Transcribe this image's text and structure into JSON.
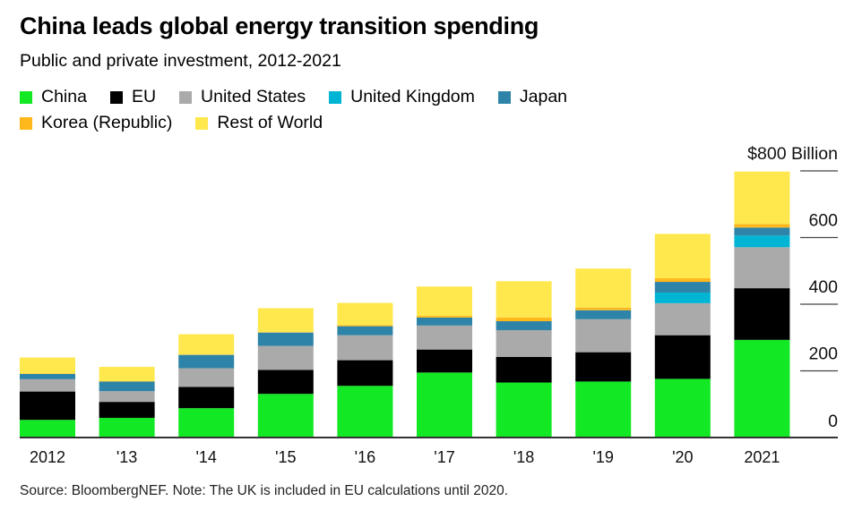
{
  "chart_data": {
    "type": "bar",
    "stacked": true,
    "title": "China leads global energy transition spending",
    "subtitle": "Public and private investment, 2012-2021",
    "source": "Source: BloombergNEF. Note: The UK is included in EU calculations until 2020.",
    "categories": [
      "2012",
      "'13",
      "'14",
      "'15",
      "'16",
      "'17",
      "'18",
      "'19",
      "'20",
      "2021"
    ],
    "ylabel": "",
    "yunit_label": "$800 Billion",
    "ylim": [
      0,
      800
    ],
    "yticks": [
      0,
      200,
      400,
      600,
      800
    ],
    "ytick_labels": [
      "0",
      "200",
      "400",
      "600",
      "$800 Billion"
    ],
    "grid": false,
    "legend_position": "top-left",
    "series": [
      {
        "name": "China",
        "color": "#12e823",
        "values": [
          53,
          59,
          88,
          131,
          155,
          195,
          165,
          168,
          176,
          293
        ]
      },
      {
        "name": "EU",
        "color": "#000000",
        "values": [
          85,
          48,
          64,
          72,
          77,
          69,
          77,
          88,
          131,
          155
        ]
      },
      {
        "name": "United States",
        "color": "#aaaaaa",
        "values": [
          37,
          32,
          56,
          72,
          75,
          72,
          80,
          99,
          96,
          123
        ]
      },
      {
        "name": "United Kingdom",
        "color": "#00b4d4",
        "values": [
          0,
          0,
          0,
          0,
          0,
          0,
          0,
          0,
          32,
          35
        ]
      },
      {
        "name": "Japan",
        "color": "#2e84a8",
        "values": [
          16,
          29,
          40,
          40,
          27,
          24,
          27,
          27,
          32,
          24
        ]
      },
      {
        "name": "Korea (Republic)",
        "color": "#ffb81c",
        "values": [
          1,
          1,
          1,
          1,
          3,
          5,
          11,
          8,
          11,
          11
        ]
      },
      {
        "name": "Rest of World",
        "color": "#ffe84d",
        "values": [
          48,
          43,
          61,
          72,
          67,
          88,
          109,
          117,
          133,
          157
        ]
      }
    ]
  }
}
